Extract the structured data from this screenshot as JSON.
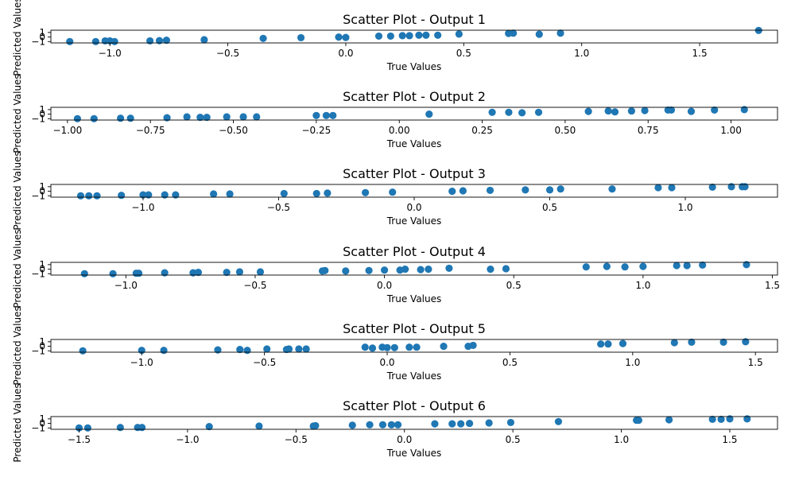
{
  "chart_data": [
    {
      "type": "scatter",
      "title": "Scatter Plot - Output 1",
      "xlabel": "True Values",
      "ylabel": "Predicted Values",
      "xlim": [
        -1.25,
        1.83
      ],
      "ylim": [
        -1.3,
        1.5
      ],
      "xticks": [
        -1.0,
        -0.5,
        0.0,
        0.5,
        1.0,
        1.5
      ],
      "xtick_labels": [
        "−1.0",
        "−0.5",
        "0.0",
        "0.5",
        "1.0",
        "1.5"
      ],
      "yticks": [
        -1,
        0,
        1
      ],
      "ytick_labels": [
        "−1",
        "0",
        "1"
      ],
      "color": "#1f77b4",
      "x": [
        -1.17,
        -1.06,
        -1.02,
        -1.0,
        -0.98,
        -0.83,
        -0.79,
        -0.76,
        -0.6,
        -0.35,
        -0.19,
        -0.03,
        0.0,
        0.14,
        0.19,
        0.24,
        0.27,
        0.31,
        0.34,
        0.39,
        0.48,
        0.69,
        0.71,
        0.82,
        0.91,
        1.75
      ],
      "y": [
        -1.0,
        -1.0,
        -0.85,
        -0.85,
        -1.0,
        -0.85,
        -0.8,
        -0.7,
        -0.6,
        -0.3,
        -0.15,
        0.0,
        -0.1,
        0.2,
        0.2,
        0.3,
        0.3,
        0.4,
        0.4,
        0.4,
        0.65,
        0.8,
        0.85,
        0.6,
        0.85,
        1.45
      ]
    },
    {
      "type": "scatter",
      "title": "Scatter Plot - Output 2",
      "xlabel": "True Values",
      "ylabel": "Predicted Values",
      "xlim": [
        -1.05,
        1.14
      ],
      "ylim": [
        -1.3,
        1.5
      ],
      "xticks": [
        -1.0,
        -0.75,
        -0.5,
        -0.25,
        0.0,
        0.25,
        0.5,
        0.75,
        1.0
      ],
      "xtick_labels": [
        "−1.00",
        "−0.75",
        "−0.50",
        "−0.25",
        "0.00",
        "0.25",
        "0.50",
        "0.75",
        "1.00"
      ],
      "yticks": [
        -1,
        0,
        1
      ],
      "ytick_labels": [
        "−1",
        "0",
        "1"
      ],
      "color": "#1f77b4",
      "x": [
        -0.97,
        -0.92,
        -0.84,
        -0.81,
        -0.7,
        -0.64,
        -0.6,
        -0.58,
        -0.52,
        -0.47,
        -0.43,
        -0.25,
        -0.22,
        -0.2,
        0.09,
        0.28,
        0.33,
        0.37,
        0.42,
        0.57,
        0.63,
        0.65,
        0.7,
        0.74,
        0.81,
        0.82,
        0.88,
        0.95,
        1.04
      ],
      "y": [
        -1.0,
        -1.0,
        -0.9,
        -0.9,
        -0.8,
        -0.6,
        -0.7,
        -0.7,
        -0.6,
        -0.6,
        -0.6,
        -0.3,
        -0.3,
        -0.3,
        0.0,
        0.4,
        0.4,
        0.3,
        0.4,
        0.6,
        0.7,
        0.5,
        0.7,
        0.8,
        0.9,
        0.9,
        0.6,
        0.9,
        1.0
      ]
    },
    {
      "type": "scatter",
      "title": "Scatter Plot - Output 3",
      "xlabel": "True Values",
      "ylabel": "Predicted Values",
      "xlim": [
        -1.34,
        1.34
      ],
      "ylim": [
        -1.3,
        1.5
      ],
      "xticks": [
        -1.0,
        -0.5,
        0.0,
        0.5,
        1.0
      ],
      "xtick_labels": [
        "−1.0",
        "−0.5",
        "0.0",
        "0.5",
        "1.0"
      ],
      "yticks": [
        -1,
        0,
        1
      ],
      "ytick_labels": [
        "−1",
        "0",
        "1"
      ],
      "color": "#1f77b4",
      "x": [
        -1.23,
        -1.2,
        -1.17,
        -1.08,
        -1.0,
        -0.98,
        -0.92,
        -0.88,
        -0.74,
        -0.68,
        -0.48,
        -0.36,
        -0.32,
        -0.18,
        -0.08,
        0.14,
        0.18,
        0.28,
        0.41,
        0.5,
        0.54,
        0.73,
        0.95,
        0.9,
        1.1,
        1.17,
        1.21,
        1.22
      ],
      "y": [
        -1.0,
        -1.0,
        -1.0,
        -0.9,
        -0.8,
        -0.8,
        -0.8,
        -0.8,
        -0.6,
        -0.6,
        -0.5,
        -0.5,
        -0.4,
        -0.3,
        -0.2,
        0.0,
        0.1,
        0.2,
        0.3,
        0.3,
        0.5,
        0.5,
        0.8,
        0.8,
        0.9,
        1.0,
        1.0,
        1.0
      ]
    },
    {
      "type": "scatter",
      "title": "Scatter Plot - Output 4",
      "xlabel": "True Values",
      "ylabel": "Predicted Values",
      "xlim": [
        -1.29,
        1.52
      ],
      "ylim": [
        -1.3,
        1.5
      ],
      "xticks": [
        -1.0,
        -0.5,
        0.0,
        0.5,
        1.0,
        1.5
      ],
      "xtick_labels": [
        "−1.0",
        "−0.5",
        "0.0",
        "0.5",
        "1.0",
        "1.5"
      ],
      "yticks": [
        -1,
        0,
        1
      ],
      "ytick_labels": [
        "−1",
        "0",
        "1"
      ],
      "color": "#1f77b4",
      "x": [
        -1.16,
        -1.05,
        -0.96,
        -0.95,
        -0.85,
        -0.74,
        -0.72,
        -0.61,
        -0.56,
        -0.48,
        -0.24,
        -0.23,
        -0.15,
        -0.06,
        0.0,
        0.06,
        0.08,
        0.14,
        0.17,
        0.25,
        0.41,
        0.47,
        0.78,
        0.86,
        0.93,
        1.0,
        1.13,
        1.17,
        1.23,
        1.4
      ],
      "y": [
        -1.0,
        -1.0,
        -0.9,
        -0.9,
        -0.8,
        -0.8,
        -0.7,
        -0.7,
        -0.6,
        -0.6,
        -0.4,
        -0.3,
        -0.4,
        -0.3,
        -0.2,
        -0.2,
        0.0,
        -0.1,
        0.0,
        0.2,
        0.0,
        0.1,
        0.5,
        0.6,
        0.5,
        0.6,
        0.8,
        0.8,
        0.9,
        1.0
      ]
    },
    {
      "type": "scatter",
      "title": "Scatter Plot - Output 5",
      "xlabel": "True Values",
      "ylabel": "Predicted Values",
      "xlim": [
        -1.37,
        1.59
      ],
      "ylim": [
        -1.3,
        1.5
      ],
      "xticks": [
        -1.0,
        -0.5,
        0.0,
        0.5,
        1.0,
        1.5
      ],
      "xtick_labels": [
        "−1.0",
        "−0.5",
        "0.0",
        "0.5",
        "1.0",
        "1.5"
      ],
      "yticks": [
        -1,
        0,
        1
      ],
      "ytick_labels": [
        "−1",
        "0",
        "1"
      ],
      "color": "#1f77b4",
      "x": [
        -1.24,
        -1.0,
        -0.91,
        -0.69,
        -0.6,
        -0.57,
        -0.49,
        -0.41,
        -0.4,
        -0.36,
        -0.33,
        -0.09,
        -0.06,
        -0.02,
        0.0,
        0.03,
        0.09,
        0.12,
        0.23,
        0.33,
        0.35,
        0.87,
        0.9,
        0.96,
        1.17,
        1.24,
        1.37,
        1.46
      ],
      "y": [
        -1.0,
        -0.9,
        -0.9,
        -0.8,
        -0.7,
        -0.9,
        -0.6,
        -0.7,
        -0.6,
        -0.6,
        -0.6,
        -0.2,
        -0.4,
        -0.2,
        -0.3,
        -0.3,
        -0.2,
        -0.2,
        0.0,
        0.0,
        0.2,
        0.5,
        0.5,
        0.6,
        0.8,
        0.9,
        0.9,
        1.0
      ]
    },
    {
      "type": "scatter",
      "title": "Scatter Plot - Output 6",
      "xlabel": "True Values",
      "ylabel": "Predicted Values",
      "xlim": [
        -1.63,
        1.72
      ],
      "ylim": [
        -1.3,
        1.5
      ],
      "xticks": [
        -1.5,
        -1.0,
        -0.5,
        0.0,
        0.5,
        1.0,
        1.5
      ],
      "xtick_labels": [
        "−1.5",
        "−1.0",
        "−0.5",
        "0.0",
        "0.5",
        "1.0",
        "1.5"
      ],
      "yticks": [
        -1,
        0,
        1
      ],
      "ytick_labels": [
        "−1",
        "0",
        "1"
      ],
      "color": "#1f77b4",
      "x": [
        -1.5,
        -1.46,
        -1.31,
        -1.23,
        -1.21,
        -0.9,
        -0.67,
        -0.42,
        -0.41,
        -0.24,
        -0.16,
        -0.1,
        -0.06,
        -0.03,
        0.14,
        0.22,
        0.26,
        0.3,
        0.39,
        0.49,
        0.71,
        1.07,
        1.08,
        1.22,
        1.42,
        1.46,
        1.5,
        1.58
      ],
      "y": [
        -1.0,
        -1.0,
        -0.9,
        -0.9,
        -0.9,
        -0.7,
        -0.6,
        -0.6,
        -0.5,
        -0.4,
        -0.3,
        -0.3,
        -0.3,
        -0.3,
        -0.1,
        -0.1,
        -0.1,
        0.0,
        0.1,
        0.2,
        0.4,
        0.7,
        0.7,
        0.8,
        0.9,
        0.9,
        1.0,
        1.0
      ]
    }
  ]
}
